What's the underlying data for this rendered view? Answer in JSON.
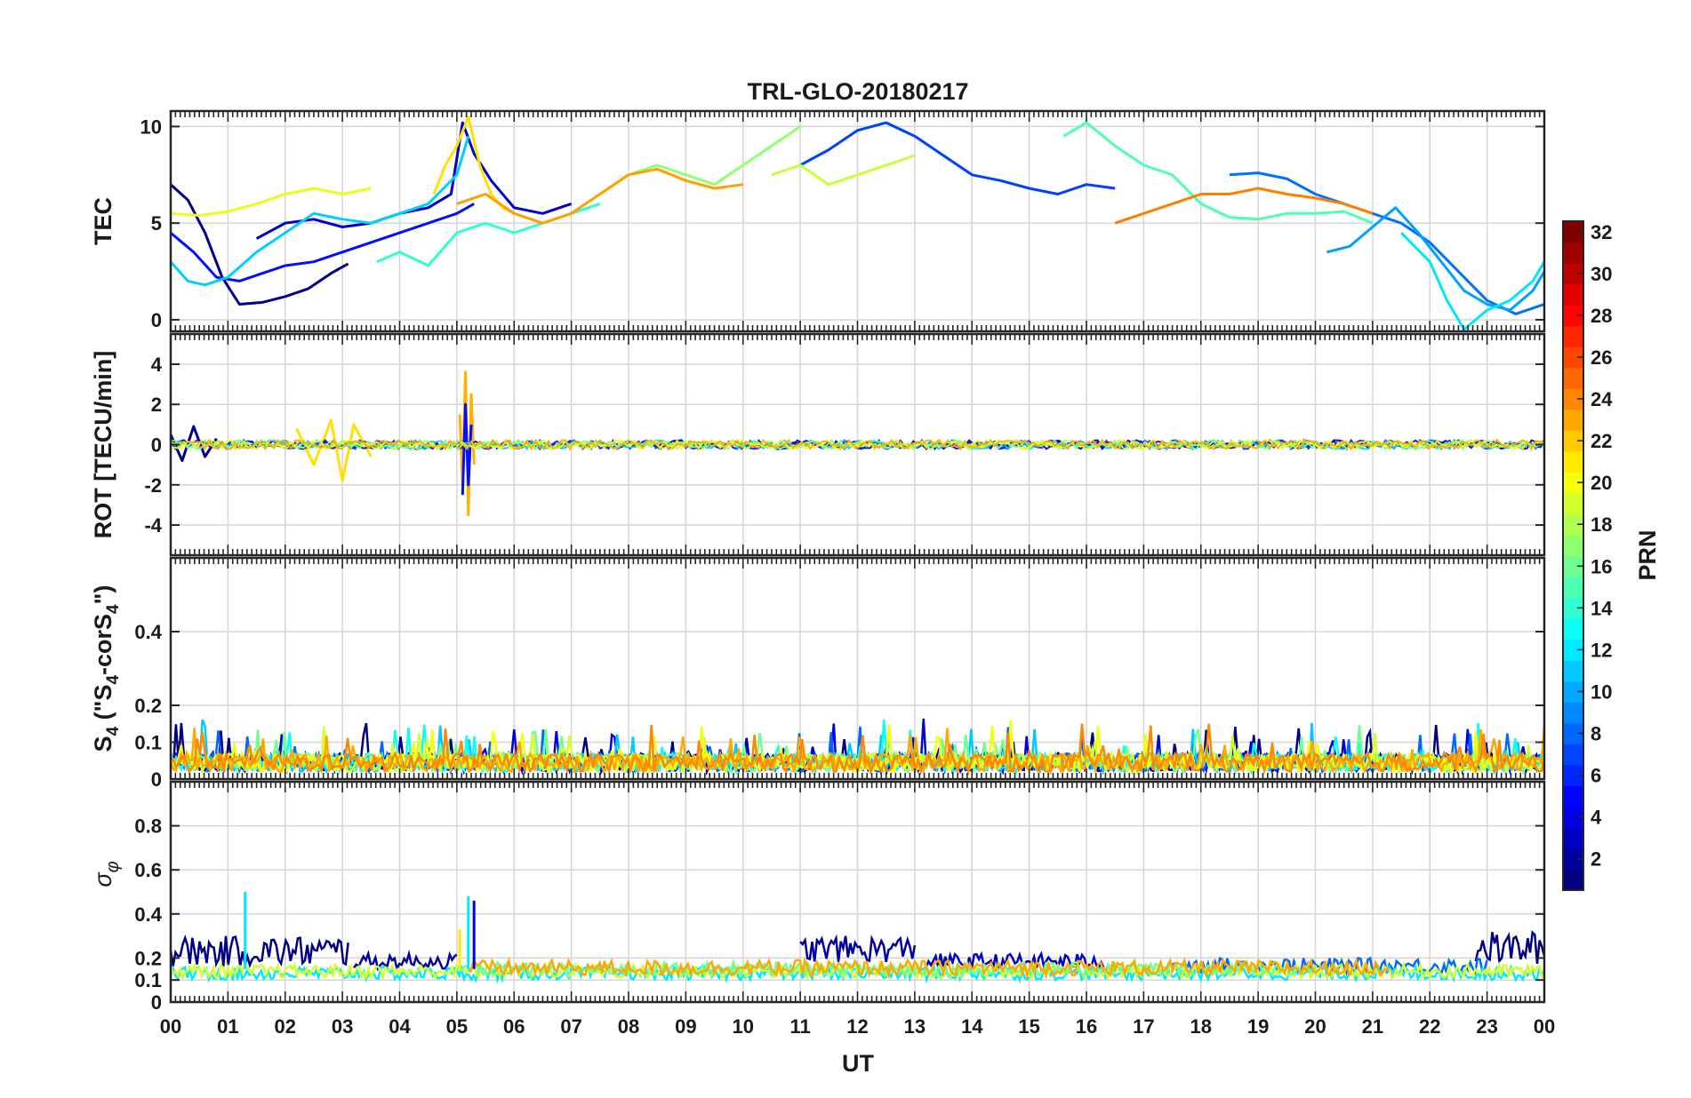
{
  "chart_data": {
    "type": "line",
    "title": "TRL-GLO-20180217",
    "xlabel": "UT",
    "x_ticks": [
      "00",
      "01",
      "02",
      "03",
      "04",
      "05",
      "06",
      "07",
      "08",
      "09",
      "10",
      "11",
      "12",
      "13",
      "14",
      "15",
      "16",
      "17",
      "18",
      "19",
      "20",
      "21",
      "22",
      "23",
      "00"
    ],
    "xlim": [
      0,
      24
    ],
    "grid": true,
    "colorbar": {
      "label": "PRN",
      "range": [
        1,
        32
      ],
      "ticks": [
        2,
        4,
        6,
        8,
        10,
        12,
        14,
        16,
        18,
        20,
        22,
        24,
        26,
        28,
        30,
        32
      ],
      "colormap": "jet"
    },
    "panels": [
      {
        "id": "tec",
        "ylabel": "TEC",
        "ylim": [
          -0.6,
          10.8
        ],
        "y_ticks": [
          0,
          5,
          10
        ],
        "series": [
          {
            "prn": 1,
            "color": "#00008f",
            "x": [
              0,
              0.3,
              0.6,
              0.9,
              1.2,
              1.6,
              2.0,
              2.4,
              2.8,
              3.1
            ],
            "y": [
              7.0,
              6.2,
              4.5,
              2.2,
              0.8,
              0.9,
              1.2,
              1.6,
              2.4,
              2.9
            ]
          },
          {
            "prn": 2,
            "color": "#0000c8",
            "x": [
              1.5,
              2.0,
              2.5,
              3.0,
              3.5,
              4.0,
              4.5,
              4.9,
              5.1,
              5.3,
              5.6,
              6.0,
              6.5,
              7.0
            ],
            "y": [
              4.2,
              5.0,
              5.2,
              4.8,
              5.0,
              5.5,
              5.8,
              6.5,
              10.2,
              8.6,
              7.2,
              5.8,
              5.5,
              6.0
            ]
          },
          {
            "prn": 3,
            "color": "#0010ff",
            "x": [
              0,
              0.4,
              0.8,
              1.2,
              1.6,
              2.0,
              2.5,
              3.0,
              3.5,
              4.0,
              4.5,
              5.0,
              5.3
            ],
            "y": [
              4.5,
              3.5,
              2.2,
              2.0,
              2.4,
              2.8,
              3.0,
              3.5,
              4.0,
              4.5,
              5.0,
              5.5,
              6.0
            ]
          },
          {
            "prn": 5,
            "color": "#0040ff",
            "x": [
              11.0,
              11.5,
              12.0,
              12.5,
              13.0,
              13.5,
              14.0,
              14.5,
              15.0,
              15.5,
              16.0,
              16.5
            ],
            "y": [
              8.0,
              8.8,
              9.8,
              10.2,
              9.5,
              8.5,
              7.5,
              7.2,
              6.8,
              6.5,
              7.0,
              6.8
            ]
          },
          {
            "prn": 7,
            "color": "#0070ff",
            "x": [
              18.5,
              19.0,
              19.5,
              20.0,
              20.5,
              21.0,
              21.5,
              22.0,
              22.5,
              23.0,
              23.5,
              24.0
            ],
            "y": [
              7.5,
              7.6,
              7.3,
              6.5,
              6.0,
              5.5,
              5.0,
              4.0,
              2.5,
              1.0,
              0.3,
              0.8
            ]
          },
          {
            "prn": 9,
            "color": "#00a0ff",
            "x": [
              20.2,
              20.6,
              21.0,
              21.4,
              21.8,
              22.2,
              22.6,
              23.0,
              23.4,
              23.8,
              24.0
            ],
            "y": [
              3.5,
              3.8,
              4.8,
              5.8,
              4.5,
              3.0,
              1.5,
              0.8,
              0.5,
              1.5,
              2.5
            ]
          },
          {
            "prn": 11,
            "color": "#00d0ff",
            "x": [
              0,
              0.3,
              0.6,
              1.0,
              1.5,
              2.0,
              2.5,
              3.0,
              3.5,
              4.0,
              4.5,
              5.0,
              5.2
            ],
            "y": [
              3.0,
              2.0,
              1.8,
              2.2,
              3.5,
              4.5,
              5.5,
              5.2,
              5.0,
              5.5,
              6.0,
              7.5,
              9.5
            ]
          },
          {
            "prn": 12,
            "color": "#00e8f0",
            "x": [
              21.5,
              22.0,
              22.3,
              22.6,
              23.0,
              23.4,
              23.8,
              24.0
            ],
            "y": [
              4.5,
              3.0,
              1.0,
              -0.5,
              0.5,
              1.0,
              2.0,
              3.0
            ]
          },
          {
            "prn": 13,
            "color": "#30ffd0",
            "x": [
              3.6,
              4.0,
              4.5,
              5.0,
              5.5,
              6.0,
              6.5,
              7.0,
              7.5
            ],
            "y": [
              3.0,
              3.5,
              2.8,
              4.5,
              5.0,
              4.5,
              5.0,
              5.5,
              6.0
            ]
          },
          {
            "prn": 14,
            "color": "#50ffb0",
            "x": [
              15.6,
              16.0,
              16.5,
              17.0,
              17.5,
              18.0,
              18.5,
              19.0,
              19.5,
              20.0,
              20.5,
              21.0
            ],
            "y": [
              9.5,
              10.2,
              9.0,
              8.0,
              7.5,
              6.0,
              5.3,
              5.2,
              5.5,
              5.5,
              5.6,
              5.0
            ]
          },
          {
            "prn": 16,
            "color": "#90ff70",
            "x": [
              7.5,
              8.0,
              8.5,
              9.0,
              9.5,
              10.0,
              10.5,
              11.0
            ],
            "y": [
              6.5,
              7.5,
              8.0,
              7.5,
              7.0,
              8.0,
              9.0,
              10.0
            ]
          },
          {
            "prn": 18,
            "color": "#c8ff38",
            "x": [
              10.5,
              11.0,
              11.5,
              12.0,
              12.5,
              13.0
            ],
            "y": [
              7.5,
              8.0,
              7.0,
              7.5,
              8.0,
              8.5
            ]
          },
          {
            "prn": 19,
            "color": "#e8ff18",
            "x": [
              0,
              0.5,
              1.0,
              1.5,
              2.0,
              2.5,
              3.0,
              3.5
            ],
            "y": [
              5.5,
              5.4,
              5.6,
              6.0,
              6.5,
              6.8,
              6.5,
              6.8
            ]
          },
          {
            "prn": 20,
            "color": "#ffe000",
            "x": [
              4.6,
              4.8,
              5.0,
              5.2,
              5.4,
              5.6,
              5.8,
              6.0
            ],
            "y": [
              6.5,
              8.0,
              9.0,
              10.5,
              8.0,
              6.5,
              5.8,
              5.5
            ]
          },
          {
            "prn": 23,
            "color": "#ffa000",
            "x": [
              5.0,
              5.5,
              6.0,
              6.5,
              7.0,
              7.5,
              8.0,
              8.5,
              9.0,
              9.5,
              10.0
            ],
            "y": [
              6.0,
              6.5,
              5.5,
              5.0,
              5.5,
              6.5,
              7.5,
              7.8,
              7.2,
              6.8,
              7.0
            ]
          },
          {
            "prn": 24,
            "color": "#ff8000",
            "x": [
              16.5,
              17.0,
              17.5,
              18.0,
              18.5,
              19.0,
              19.5,
              20.0,
              20.5,
              21.0
            ],
            "y": [
              5.0,
              5.5,
              6.0,
              6.5,
              6.5,
              6.8,
              6.5,
              6.3,
              6.0,
              5.5
            ]
          }
        ]
      },
      {
        "id": "rot",
        "ylabel": "ROT [TECU/min]",
        "ylim": [
          -5.5,
          5.5
        ],
        "y_ticks": [
          -4,
          -2,
          0,
          2,
          4
        ],
        "series": [
          {
            "prn": 1,
            "color": "#00008f",
            "x": [
              0.0,
              0.2,
              0.4,
              0.6,
              0.8
            ],
            "y": [
              0.5,
              -0.8,
              0.9,
              -0.6,
              0.3
            ]
          },
          {
            "prn": 20,
            "color": "#ffe000",
            "x": [
              2.2,
              2.5,
              2.8,
              3.0,
              3.2,
              3.5
            ],
            "y": [
              0.8,
              -1.0,
              1.2,
              -1.8,
              1.0,
              -0.6
            ]
          },
          {
            "prn": 22,
            "color": "#ffb000",
            "x": [
              5.05,
              5.1,
              5.15,
              5.2,
              5.25,
              5.3
            ],
            "y": [
              1.5,
              -2.0,
              3.6,
              -3.5,
              2.5,
              -1.0
            ]
          },
          {
            "prn": 3,
            "color": "#0010ff",
            "x": [
              5.1,
              5.15,
              5.2,
              5.25
            ],
            "y": [
              -2.5,
              2.0,
              -2.0,
              1.0
            ]
          }
        ]
      },
      {
        "id": "s4",
        "ylabel_main": "S",
        "ylabel_sub": "4",
        "ylabel_rest": " (\"S",
        "ylabel_sub2": "4",
        "ylabel_rest2": "-corS",
        "ylabel_sub3": "4",
        "ylabel_end": "\")",
        "ylim": [
          0,
          0.6
        ],
        "y_ticks": [
          0,
          0.1,
          0.2,
          0.4
        ],
        "y_tick_labels": [
          "0",
          "0.1",
          "0.2",
          "0.4"
        ]
      },
      {
        "id": "sigma",
        "ylabel": "σ",
        "ylabel_sub": "φ",
        "ylim": [
          0,
          1.0
        ],
        "y_ticks": [
          0,
          0.1,
          0.2,
          0.4,
          0.6,
          0.8
        ],
        "y_tick_labels": [
          "0",
          "0.1",
          "0.2",
          "0.4",
          "0.6",
          "0.8"
        ]
      }
    ]
  }
}
